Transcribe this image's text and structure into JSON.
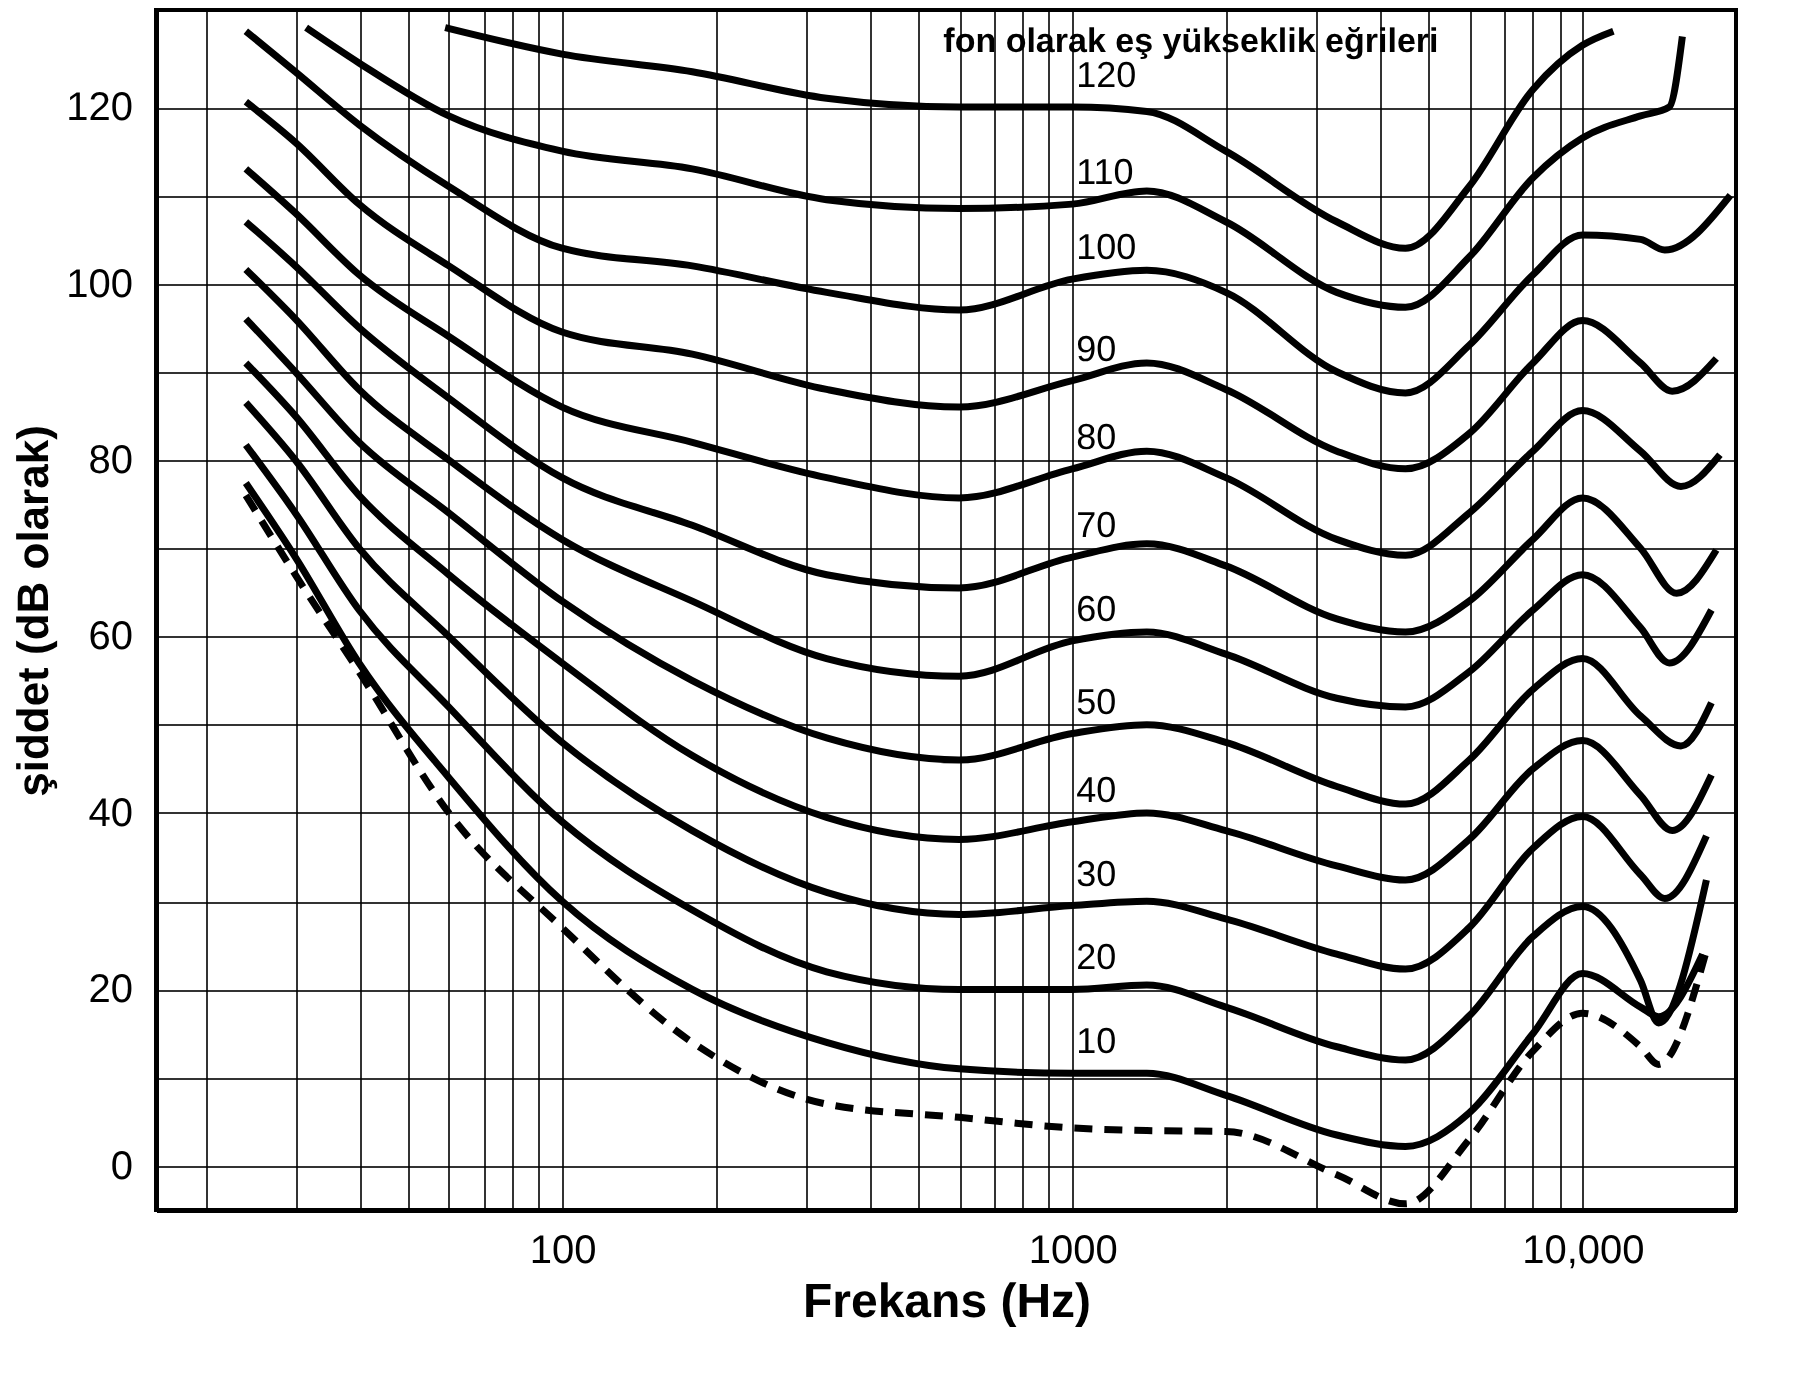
{
  "chart_data": {
    "type": "line",
    "xlabel": "Frekans (Hz)",
    "ylabel": "şiddet (dB olarak)",
    "annotations": [
      "fon olarak eş yükseklik eğrileri"
    ],
    "log": "x",
    "grid": true,
    "line_style": "solid",
    "xlim": [
      16,
      20000
    ],
    "ylim": [
      -5,
      131
    ],
    "xticks": [
      {
        "value": 20,
        "label": null
      },
      {
        "value": 30,
        "label": null
      },
      {
        "value": 40,
        "label": null
      },
      {
        "value": 50,
        "label": null
      },
      {
        "value": 60,
        "label": null
      },
      {
        "value": 70,
        "label": null
      },
      {
        "value": 80,
        "label": null
      },
      {
        "value": 90,
        "label": null
      },
      100,
      {
        "value": 200,
        "label": null
      },
      {
        "value": 300,
        "label": null
      },
      {
        "value": 400,
        "label": null
      },
      {
        "value": 500,
        "label": null
      },
      {
        "value": 600,
        "label": null
      },
      {
        "value": 700,
        "label": null
      },
      {
        "value": 800,
        "label": null
      },
      {
        "value": 900,
        "label": null
      },
      1000,
      {
        "value": 2000,
        "label": null
      },
      {
        "value": 3000,
        "label": null
      },
      {
        "value": 4000,
        "label": null
      },
      {
        "value": 5000,
        "label": null
      },
      {
        "value": 6000,
        "label": null
      },
      {
        "value": 7000,
        "label": null
      },
      {
        "value": 8000,
        "label": null
      },
      {
        "value": 9000,
        "label": null
      },
      {
        "value": 10000,
        "label": "10,000"
      }
    ],
    "yticks": [
      0,
      {
        "value": 10,
        "label": null
      },
      20,
      {
        "value": 30,
        "label": null
      },
      40,
      {
        "value": 50,
        "label": null
      },
      60,
      {
        "value": 70,
        "label": null
      },
      80,
      {
        "value": 90,
        "label": null
      },
      100,
      {
        "value": 110,
        "label": null
      },
      120
    ],
    "series": [
      {
        "name": "120",
        "color": "#000000",
        "x": [
          59,
          100,
          180,
          330,
          600,
          1000,
          1400,
          2000,
          3300,
          4500,
          6000,
          8000,
          10000,
          11500
        ],
        "values": [
          129,
          126,
          124,
          121,
          120,
          120,
          119.5,
          115,
          107,
          104,
          111,
          122,
          127,
          128.6
        ]
      },
      {
        "name": "110",
        "color": "#000000",
        "x": [
          31.5,
          40,
          60,
          100,
          180,
          330,
          600,
          1000,
          1400,
          2000,
          3300,
          4500,
          6000,
          8000,
          10000,
          13000,
          14800,
          15700
        ],
        "values": [
          129,
          125,
          119,
          115,
          113,
          109.5,
          108.5,
          109,
          110.5,
          107,
          99,
          97.3,
          103,
          112,
          116.5,
          119,
          120,
          128
        ]
      },
      {
        "name": "100",
        "color": "#000000",
        "x": [
          24,
          30,
          40,
          60,
          100,
          180,
          330,
          600,
          1000,
          1400,
          2000,
          3300,
          4500,
          6000,
          8000,
          10000,
          13000,
          14500,
          19500
        ],
        "values": [
          128.6,
          124,
          118,
          111,
          104,
          102,
          99,
          97,
          100.5,
          101.5,
          99,
          90,
          87.6,
          93,
          101,
          105.5,
          105,
          103.8,
          110
        ]
      },
      {
        "name": "90",
        "color": "#000000",
        "x": [
          24,
          30,
          40,
          60,
          100,
          180,
          330,
          600,
          1000,
          1400,
          2000,
          3300,
          4500,
          6000,
          8000,
          10000,
          13000,
          15000,
          18300
        ],
        "values": [
          120.6,
          116,
          109,
          102,
          94.5,
          92,
          88,
          86,
          89,
          91,
          88,
          81,
          79,
          83,
          91,
          95.8,
          91,
          87.8,
          91.5
        ]
      },
      {
        "name": "80",
        "color": "#000000",
        "x": [
          24,
          30,
          40,
          60,
          100,
          180,
          330,
          600,
          1000,
          1400,
          2000,
          3300,
          4500,
          6000,
          8000,
          10000,
          13000,
          15600,
          18600
        ],
        "values": [
          113,
          108,
          101,
          94,
          86,
          82,
          78,
          75.7,
          79,
          81,
          78,
          71,
          69.2,
          74,
          81,
          85.6,
          81,
          77,
          80.6
        ]
      },
      {
        "name": "70",
        "color": "#000000",
        "x": [
          24,
          30,
          40,
          60,
          100,
          180,
          330,
          600,
          1000,
          1400,
          2000,
          3300,
          4500,
          6000,
          8000,
          10000,
          13000,
          15300,
          18300
        ],
        "values": [
          107,
          102,
          95,
          87,
          78,
          72.6,
          67,
          65.5,
          69,
          70.5,
          68,
          62,
          60.5,
          64,
          71,
          75.7,
          70,
          64.9,
          69.8
        ]
      },
      {
        "name": "60",
        "color": "#000000",
        "x": [
          24,
          30,
          40,
          60,
          100,
          180,
          330,
          600,
          1000,
          1400,
          2000,
          3300,
          4500,
          6000,
          8000,
          10000,
          13000,
          14800,
          17900
        ],
        "values": [
          101.6,
          96,
          88,
          80,
          71,
          64,
          57.5,
          55.5,
          59.5,
          60.5,
          58,
          53,
          52,
          56,
          63,
          67,
          61,
          57,
          63
        ]
      },
      {
        "name": "50",
        "color": "#000000",
        "x": [
          24,
          30,
          40,
          60,
          100,
          180,
          330,
          600,
          1000,
          1400,
          2000,
          3300,
          4500,
          6000,
          8000,
          10000,
          13000,
          15600,
          17900
        ],
        "values": [
          96,
          90,
          82,
          74,
          64,
          55,
          48.5,
          46,
          49,
          50,
          48,
          43,
          41,
          46,
          54,
          57.5,
          51,
          47.6,
          52.5
        ]
      },
      {
        "name": "40",
        "color": "#000000",
        "x": [
          24,
          30,
          40,
          60,
          100,
          180,
          330,
          600,
          1000,
          1400,
          2000,
          3300,
          4500,
          6000,
          8000,
          10000,
          13000,
          15000,
          17900
        ],
        "values": [
          91,
          85,
          76,
          67,
          57,
          46.5,
          39.5,
          37,
          39,
          40,
          38,
          34,
          32.4,
          37,
          45,
          48.2,
          42,
          38,
          44.3
        ]
      },
      {
        "name": "30",
        "color": "#000000",
        "x": [
          24,
          30,
          40,
          60,
          100,
          180,
          330,
          600,
          1000,
          1400,
          2000,
          3300,
          4500,
          6000,
          8000,
          10000,
          13000,
          14500,
          17500
        ],
        "values": [
          86.5,
          80,
          70,
          60,
          48,
          38,
          31,
          28.5,
          29.5,
          30,
          28,
          24,
          22.3,
          27,
          36,
          39.6,
          33,
          30.3,
          37.4
        ]
      },
      {
        "name": "20",
        "color": "#000000",
        "x": [
          24,
          30,
          40,
          60,
          100,
          180,
          330,
          600,
          1000,
          1400,
          2000,
          3300,
          4500,
          6000,
          8000,
          10000,
          13000,
          14100,
          17500
        ],
        "values": [
          81.7,
          74,
          63,
          52,
          39,
          29,
          22,
          20,
          20,
          20.5,
          18,
          13.5,
          12,
          17,
          26,
          29.4,
          21,
          16.2,
          32.4
        ]
      },
      {
        "name": "10",
        "color": "#000000",
        "x": [
          24,
          30,
          40,
          60,
          100,
          180,
          330,
          600,
          1000,
          1400,
          2000,
          3300,
          4500,
          6000,
          8000,
          10000,
          13000,
          14100,
          17200
        ],
        "values": [
          77.4,
          69,
          57,
          44,
          30,
          20,
          14,
          11,
          10.5,
          10.5,
          8,
          3.5,
          2.2,
          6,
          15,
          21.8,
          18,
          16.9,
          24
        ]
      },
      {
        "color": "#000000",
        "line_style": "dashed",
        "x": [
          24,
          30,
          40,
          60,
          100,
          180,
          330,
          600,
          1000,
          1400,
          2000,
          3300,
          4500,
          6000,
          8000,
          10000,
          13000,
          14100,
          17500
        ],
        "values": [
          76,
          67,
          56,
          40,
          27,
          14,
          7,
          5.5,
          4.3,
          4,
          3.9,
          -1,
          -4.3,
          3,
          13,
          17.3,
          13.5,
          11.5,
          24.4
        ]
      }
    ]
  }
}
